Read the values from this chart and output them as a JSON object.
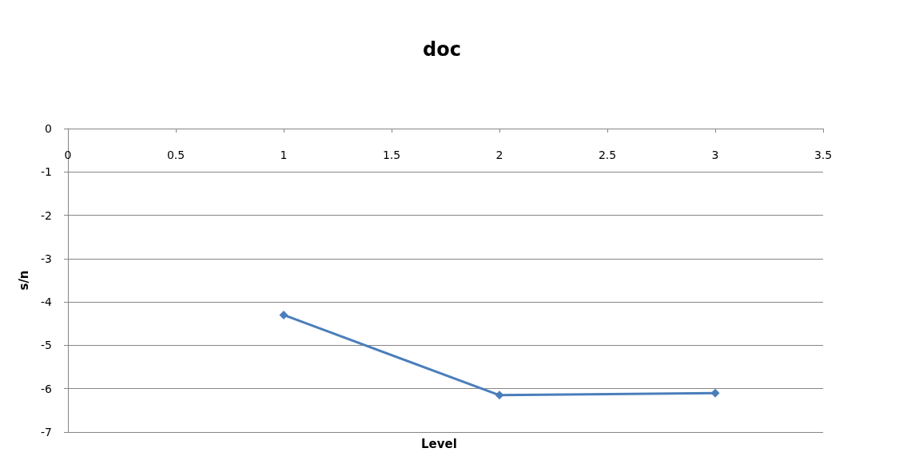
{
  "chart_data": {
    "type": "line",
    "title": "doc",
    "xlabel": "Level",
    "ylabel": "s/n",
    "x": [
      1,
      2,
      3
    ],
    "series": [
      {
        "color": "#4a7ebb",
        "values": [
          -4.3,
          -6.15,
          -6.1
        ]
      }
    ],
    "xlim": [
      0,
      3.5
    ],
    "xticks": [
      0,
      0.5,
      1,
      1.5,
      2,
      2.5,
      3,
      3.5
    ],
    "ylim": [
      -7,
      0
    ],
    "yticks": [
      -7,
      -6,
      -5,
      -4,
      -3,
      -2,
      -1,
      0
    ],
    "grid": "y",
    "marker": "diamond",
    "line_style": "solid"
  }
}
